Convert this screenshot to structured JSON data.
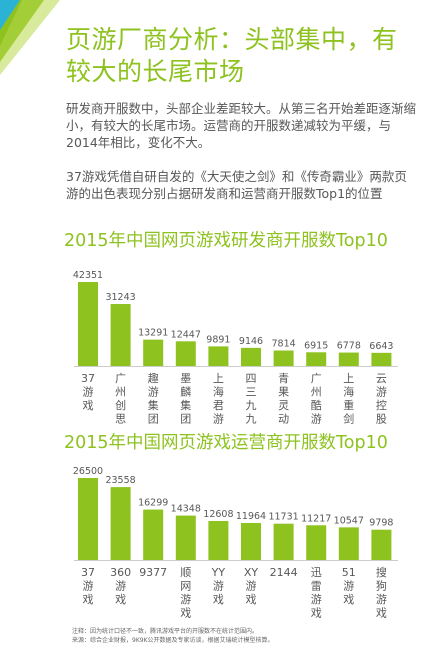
{
  "title": "页游厂商分析：头部集中，有较大的长尾市场",
  "paragraphs": [
    "研发商开服数中，头部企业差距较大。从第三名开始差距逐渐缩小，有较大的长尾市场。运营商的开服数递减较为平缓，与2014年相比，变化不大。",
    "37游戏凭借自研自发的《大天使之剑》和《传奇霸业》两款页游的出色表现分别占据研发商和运营商开服数Top1的位置"
  ],
  "notes": [
    "注释：因为统计口径不一致，腾讯游戏平台的开服数不在统计范围内。",
    "来源：综合企业财报，9K9K公开数据及专家访谈，根据艾瑞统计模型核算。"
  ],
  "colors": {
    "accent": "#8dc21f",
    "bar": "#8dc21f",
    "text": "#595757"
  },
  "chart_data": [
    {
      "type": "bar",
      "title": "2015年中国网页游戏研发商开服数Top10",
      "categories": [
        "37游戏",
        "广州创思",
        "趣游集团",
        "墨麟集团",
        "上海君游",
        "四三九九",
        "青果灵动",
        "广州酷游",
        "上海重剑",
        "云游控股"
      ],
      "values": [
        42351,
        31243,
        13291,
        12447,
        9891,
        9146,
        7814,
        6915,
        6778,
        6643
      ]
    },
    {
      "type": "bar",
      "title": "2015年中国网页游戏运营商开服数Top10",
      "categories": [
        "37游戏",
        "360游戏",
        "9377",
        "顺网游戏",
        "YY游戏",
        "XY游戏",
        "2144",
        "迅雷游戏",
        "51游戏",
        "搜狗游戏"
      ],
      "values": [
        26500,
        23558,
        16299,
        14348,
        12608,
        11964,
        11731,
        11217,
        10547,
        9798
      ]
    }
  ]
}
